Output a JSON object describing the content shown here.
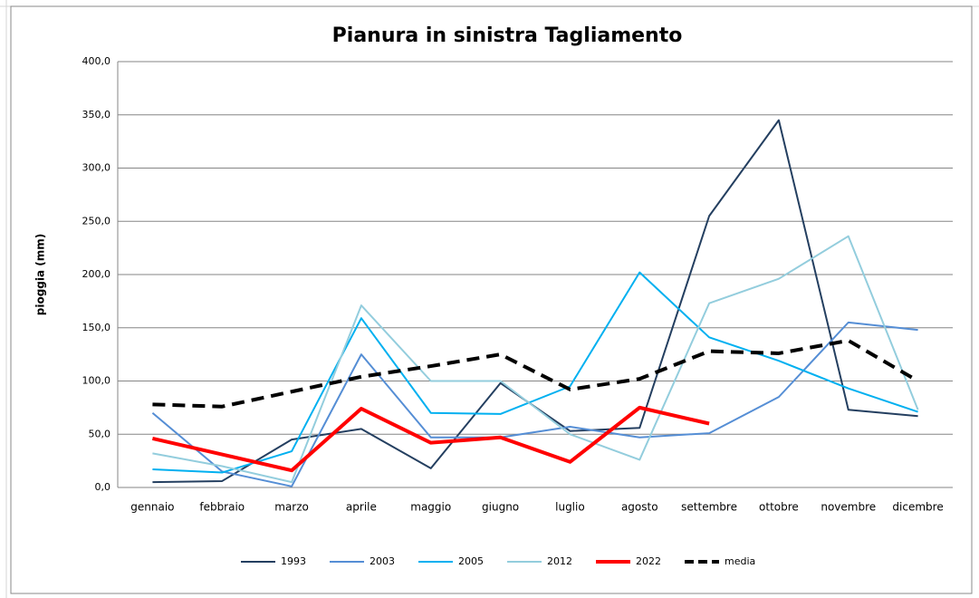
{
  "chart_data": {
    "type": "line",
    "title": "Pianura in sinistra Tagliamento",
    "y_label": "pioggia (mm)",
    "categories": [
      "gennaio",
      "febbraio",
      "marzo",
      "aprile",
      "maggio",
      "giugno",
      "luglio",
      "agosto",
      "settembre",
      "ottobre",
      "novembre",
      "dicembre"
    ],
    "series": [
      {
        "name": "1993",
        "color": "#243f60",
        "line_width": 2,
        "style": "solid",
        "values": [
          5,
          6,
          45,
          55,
          18,
          98,
          53,
          56,
          255,
          345,
          73,
          67
        ]
      },
      {
        "name": "2003",
        "color": "#558ed5",
        "line_width": 2,
        "style": "solid",
        "values": [
          70,
          15,
          1,
          125,
          47,
          47,
          57,
          47,
          51,
          85,
          155,
          148
        ]
      },
      {
        "name": "2005",
        "color": "#00b0f0",
        "line_width": 2,
        "style": "solid",
        "values": [
          17,
          14,
          34,
          159,
          70,
          69,
          95,
          202,
          141,
          119,
          93,
          71
        ]
      },
      {
        "name": "2012",
        "color": "#93cddd",
        "line_width": 2,
        "style": "solid",
        "values": [
          32,
          20,
          5,
          171,
          100,
          100,
          50,
          26,
          173,
          196,
          236,
          73
        ]
      },
      {
        "name": "2022",
        "color": "#ff0000",
        "line_width": 4,
        "style": "solid",
        "values": [
          46,
          31,
          16,
          74,
          42,
          47,
          24,
          75,
          60,
          null,
          null,
          null
        ]
      },
      {
        "name": "media",
        "color": "#000000",
        "line_width": 4,
        "style": "dashed",
        "values": [
          78,
          76,
          90,
          104,
          114,
          125,
          92,
          102,
          128,
          126,
          138,
          100
        ]
      }
    ],
    "ylim": [
      0,
      400
    ],
    "yticks": [
      {
        "value": 0,
        "label": "0,0"
      },
      {
        "value": 50,
        "label": "50,0"
      },
      {
        "value": 100,
        "label": "100,0"
      },
      {
        "value": 150,
        "label": "150,0"
      },
      {
        "value": 200,
        "label": "200,0"
      },
      {
        "value": 250,
        "label": "250,0"
      },
      {
        "value": 300,
        "label": "300,0"
      },
      {
        "value": 350,
        "label": "350,0"
      },
      {
        "value": 400,
        "label": "400,0"
      }
    ],
    "grid": true,
    "legend": "bottom"
  }
}
